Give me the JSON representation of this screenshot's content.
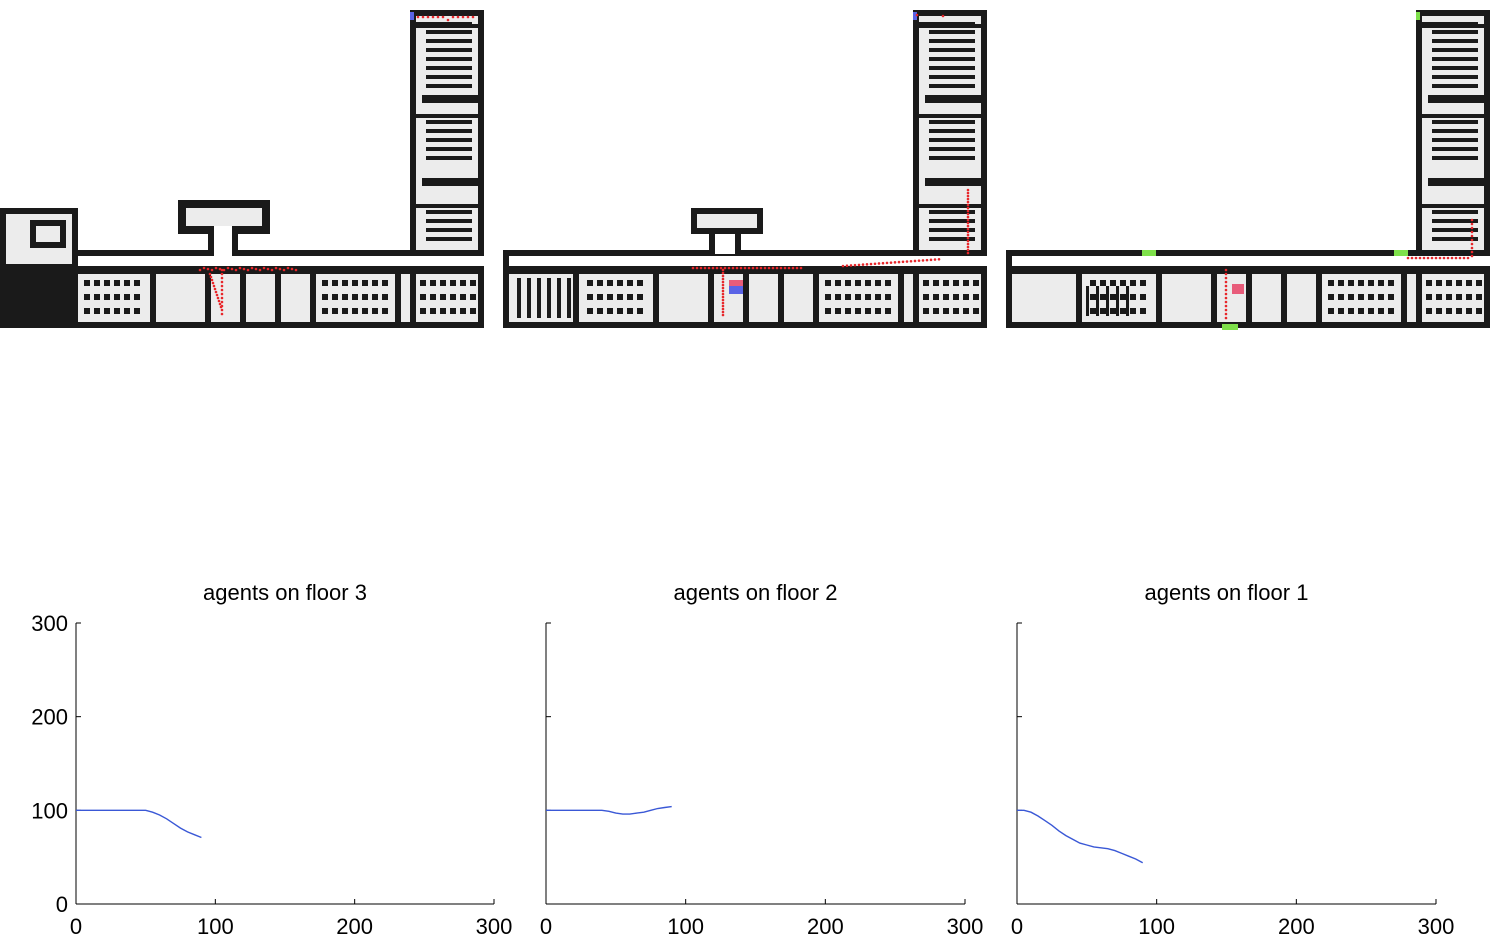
{
  "colors": {
    "wall": "#1a1a1a",
    "floor": "#ececec",
    "agent": "#e8262a",
    "blue_marker": "#5a63e6",
    "pink_marker": "#e85c7a",
    "green_exit": "#7ee04a",
    "series_line": "#3a58d6"
  },
  "floorplans": [
    {
      "id": "floor-3",
      "exits": [],
      "markers": [
        "blue",
        "blue"
      ]
    },
    {
      "id": "floor-2",
      "exits": [],
      "markers": [
        "blue",
        "pink",
        "blue"
      ]
    },
    {
      "id": "floor-1",
      "exits": [
        "green",
        "green",
        "green"
      ],
      "markers": [
        "pink",
        "green",
        "pink"
      ]
    }
  ],
  "chart_data": [
    {
      "type": "line",
      "title": "agents on floor 3",
      "xlabel": "",
      "ylabel": "",
      "xlim": [
        0,
        300
      ],
      "ylim": [
        0,
        300
      ],
      "xticks": [
        "0",
        "100",
        "200",
        "300"
      ],
      "yticks": [
        "0",
        "100",
        "200",
        "300"
      ],
      "x": [
        0,
        10,
        20,
        30,
        40,
        50,
        55,
        60,
        65,
        70,
        75,
        80,
        85,
        90
      ],
      "y": [
        100,
        100,
        100,
        100,
        100,
        100,
        98,
        95,
        91,
        86,
        81,
        77,
        74,
        71
      ]
    },
    {
      "type": "line",
      "title": "agents on floor 2",
      "xlabel": "",
      "ylabel": "",
      "xlim": [
        0,
        300
      ],
      "ylim": [
        0,
        300
      ],
      "xticks": [
        "0",
        "100",
        "200",
        "300"
      ],
      "yticks": [],
      "x": [
        0,
        10,
        20,
        30,
        40,
        45,
        50,
        55,
        60,
        65,
        70,
        75,
        80,
        85,
        90
      ],
      "y": [
        100,
        100,
        100,
        100,
        100,
        99,
        97,
        96,
        96,
        97,
        98,
        100,
        102,
        103,
        104
      ]
    },
    {
      "type": "line",
      "title": "agents on floor 1",
      "xlabel": "",
      "ylabel": "",
      "xlim": [
        0,
        300
      ],
      "ylim": [
        0,
        300
      ],
      "xticks": [
        "0",
        "100",
        "200",
        "300"
      ],
      "yticks": [],
      "x": [
        0,
        5,
        10,
        15,
        20,
        25,
        30,
        35,
        40,
        45,
        50,
        55,
        60,
        65,
        70,
        75,
        80,
        85,
        90
      ],
      "y": [
        100,
        100,
        98,
        94,
        89,
        84,
        78,
        73,
        69,
        65,
        63,
        61,
        60,
        59,
        57,
        54,
        51,
        48,
        44
      ]
    }
  ]
}
